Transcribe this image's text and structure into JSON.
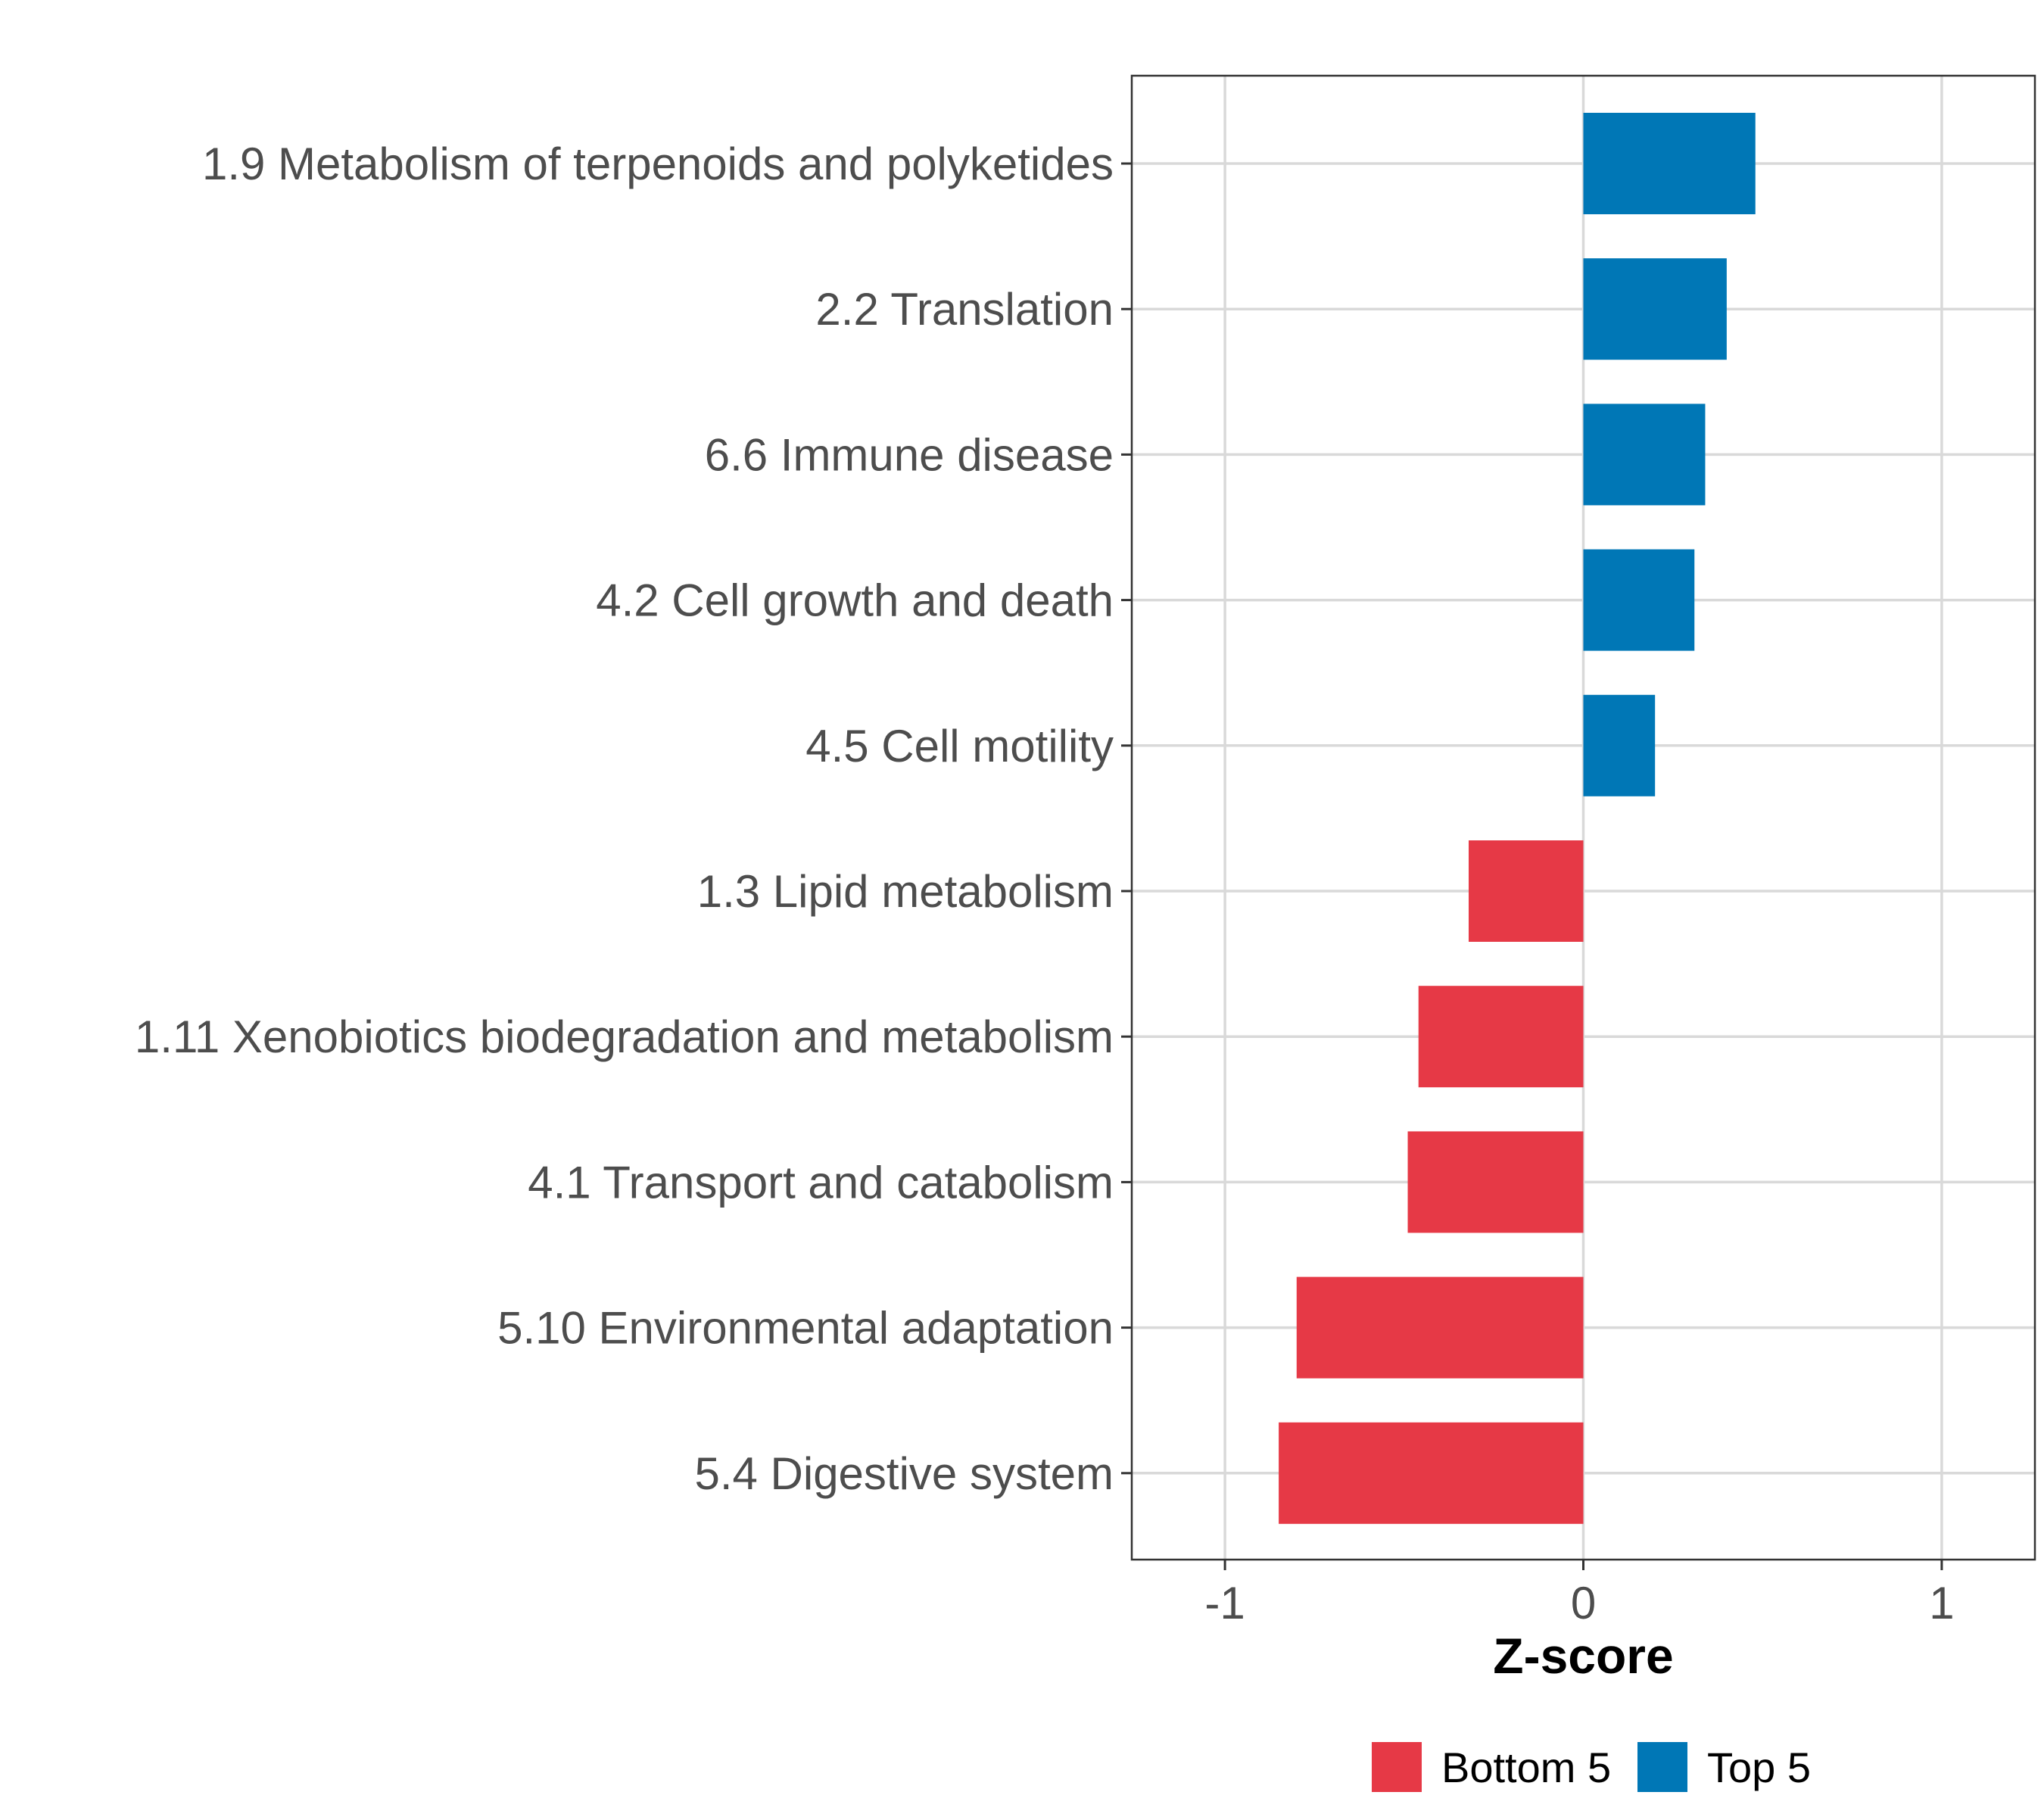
{
  "chart_data": {
    "type": "bar",
    "orientation": "horizontal",
    "categories": [
      "1.9 Metabolism of terpenoids and polyketides",
      "2.2 Translation",
      "6.6 Immune disease",
      "4.2 Cell growth and death",
      "4.5 Cell motility",
      "1.3 Lipid metabolism",
      "1.11 Xenobiotics biodegradation and metabolism",
      "4.1 Transport and catabolism",
      "5.10 Environmental adaptation",
      "5.4 Digestive system"
    ],
    "values": [
      0.48,
      0.4,
      0.34,
      0.31,
      0.2,
      -0.32,
      -0.46,
      -0.49,
      -0.8,
      -0.85
    ],
    "groups": [
      "Top 5",
      "Top 5",
      "Top 5",
      "Top 5",
      "Top 5",
      "Bottom 5",
      "Bottom 5",
      "Bottom 5",
      "Bottom 5",
      "Bottom 5"
    ],
    "xlabel": "Z-score",
    "ylabel": "",
    "xlim": [
      -1.26,
      1.26
    ],
    "xticks": [
      -1,
      0,
      1
    ],
    "xtick_labels": [
      "-1",
      "0",
      "1"
    ],
    "grid": true,
    "legend": {
      "position": "bottom",
      "entries": [
        {
          "label": "Bottom 5",
          "color": "#E63946"
        },
        {
          "label": "Top 5",
          "color": "#0077B6"
        }
      ]
    }
  }
}
